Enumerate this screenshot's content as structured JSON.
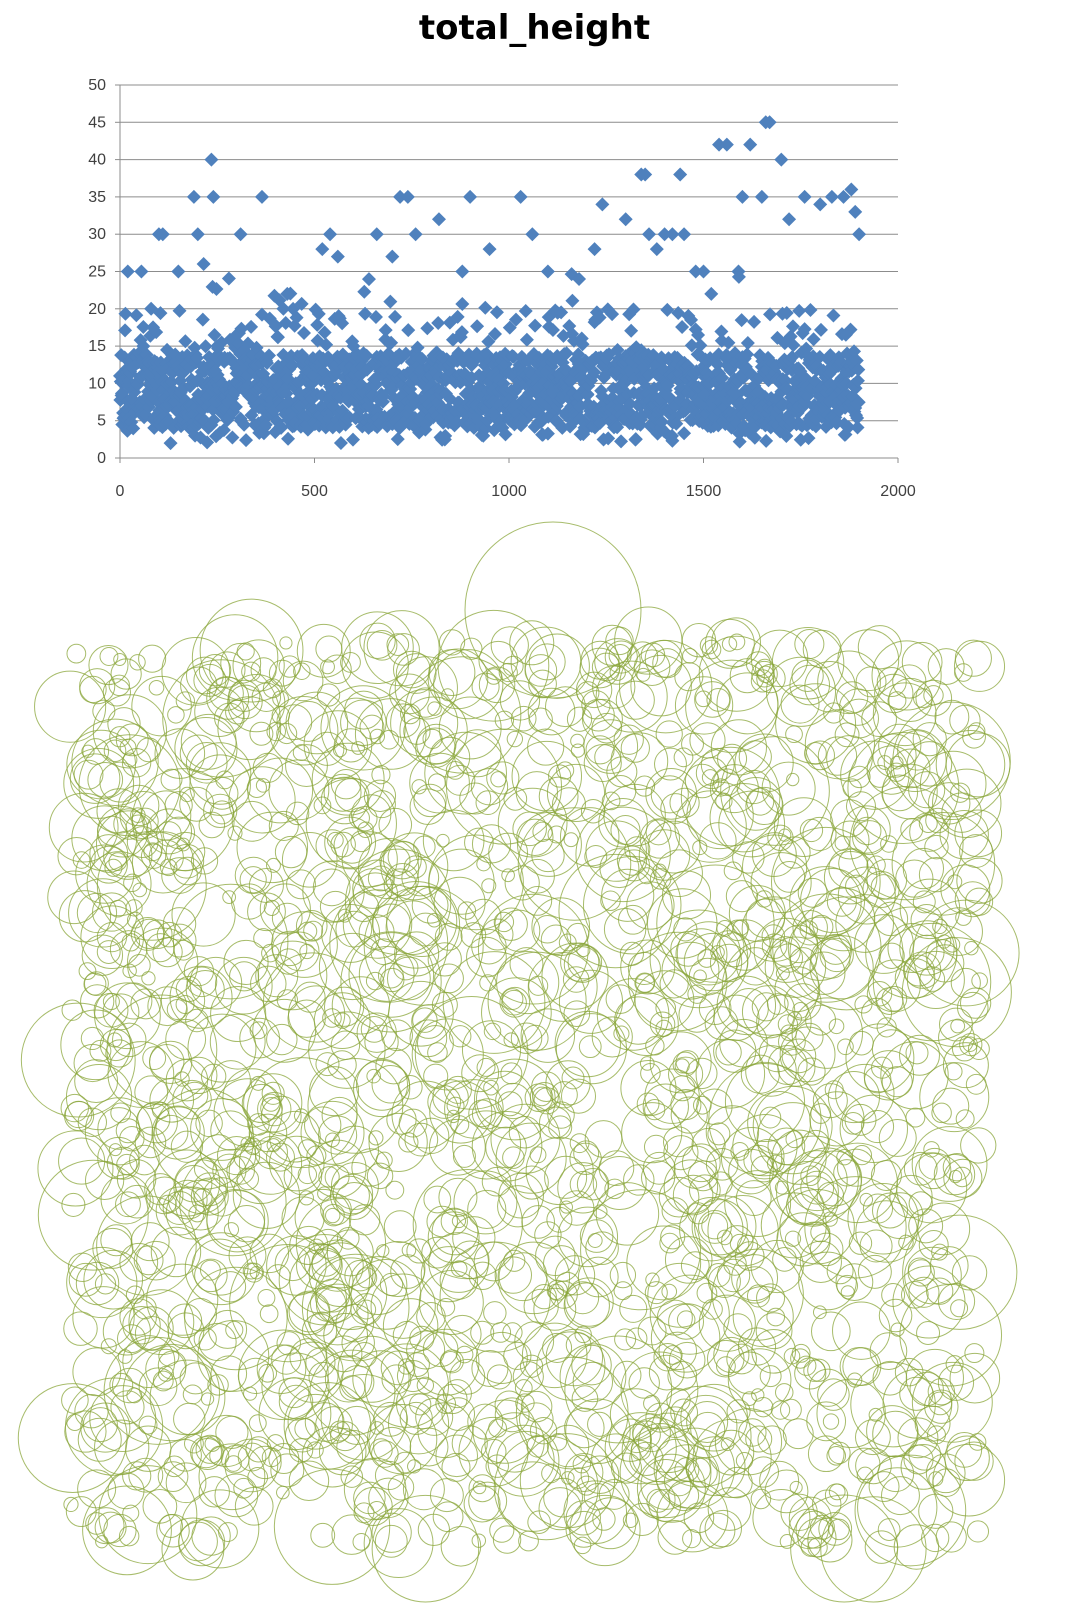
{
  "chart_data": [
    {
      "type": "scatter",
      "title": "total_height",
      "xlabel": "",
      "ylabel": "",
      "xlim": [
        0,
        2000
      ],
      "ylim": [
        0,
        50
      ],
      "xticks": [
        "0",
        "500",
        "1000",
        "1500",
        "2000"
      ],
      "yticks": [
        "0",
        "5",
        "10",
        "15",
        "20",
        "25",
        "30",
        "35",
        "40",
        "45",
        "50"
      ],
      "grid": "horizontal",
      "legend": "none",
      "marker": "diamond",
      "marker_color": "#4f81bd",
      "n_points": 1900,
      "series": [
        {
          "x": [
            20,
            55,
            80,
            100,
            110,
            150,
            190,
            200,
            215,
            235,
            240,
            310,
            365,
            520,
            540,
            560,
            600,
            720,
            740,
            760,
            820,
            900,
            1030,
            1060,
            1100,
            1240,
            1300,
            1340,
            1350,
            1360,
            1400,
            1440,
            1450,
            1520,
            1540,
            1560,
            1590,
            1600,
            1620,
            1650,
            1660,
            1670,
            1700,
            1720,
            1760,
            1800,
            1830,
            1860,
            1880,
            1890,
            1900,
            1500,
            1480,
            1420,
            1380,
            1220,
            1180,
            950,
            880,
            700,
            660,
            430,
            420,
            250,
            130,
            60,
            30
          ],
          "y": [
            25,
            25,
            20,
            30,
            30,
            25,
            35,
            30,
            26,
            40,
            35,
            30,
            35,
            28,
            30,
            27,
            15,
            35,
            35,
            30,
            32,
            35,
            35,
            30,
            25,
            34,
            32,
            38,
            38,
            30,
            30,
            38,
            30,
            22,
            42,
            42,
            25,
            35,
            42,
            35,
            45,
            45,
            40,
            32,
            35,
            34,
            35,
            35,
            36,
            33,
            30,
            25,
            25,
            30,
            28,
            28,
            24,
            28,
            25,
            27,
            30,
            22,
            20,
            15,
            2,
            15,
            8
          ]
        }
      ],
      "dense_band": {
        "x_range": [
          0,
          1900
        ],
        "y_range": [
          2,
          20
        ]
      }
    },
    {
      "type": "other",
      "description_shape": "overlapping outlined circles",
      "stroke_color": "#8aa53a",
      "n_circles": 1900
    }
  ]
}
